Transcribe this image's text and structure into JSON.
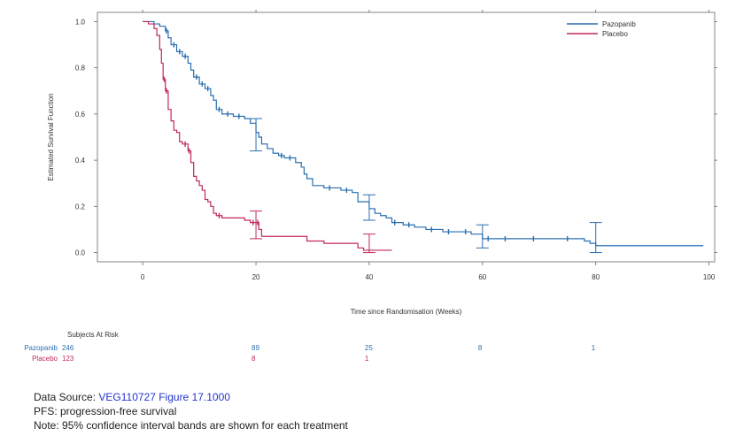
{
  "chart_data": {
    "type": "line",
    "xlabel": "Time since Randomisation (Weeks)",
    "ylabel": "Estimated Survival Function",
    "xlim": [
      -8,
      101
    ],
    "ylim": [
      -0.04,
      1.04
    ],
    "xticks": [
      0,
      20,
      40,
      60,
      80,
      100
    ],
    "yticks": [
      0.0,
      0.2,
      0.4,
      0.6,
      0.8,
      1.0
    ],
    "ytick_labels": [
      "0.0",
      "0.2",
      "0.4",
      "0.6",
      "0.8",
      "1.0"
    ],
    "legend": "top-right",
    "series": [
      {
        "name": "Pazopanib",
        "color": "#2a6fb0",
        "steps": [
          [
            0,
            1.0
          ],
          [
            2,
            0.99
          ],
          [
            3,
            0.98
          ],
          [
            4,
            0.96
          ],
          [
            4.5,
            0.93
          ],
          [
            5,
            0.9
          ],
          [
            6,
            0.87
          ],
          [
            7,
            0.85
          ],
          [
            8,
            0.82
          ],
          [
            8.5,
            0.79
          ],
          [
            9,
            0.76
          ],
          [
            10,
            0.73
          ],
          [
            11,
            0.71
          ],
          [
            12,
            0.68
          ],
          [
            12.5,
            0.66
          ],
          [
            13,
            0.62
          ],
          [
            14,
            0.6
          ],
          [
            16,
            0.59
          ],
          [
            18,
            0.58
          ],
          [
            19,
            0.56
          ],
          [
            20,
            0.52
          ],
          [
            20.5,
            0.5
          ],
          [
            21,
            0.47
          ],
          [
            22,
            0.45
          ],
          [
            23,
            0.43
          ],
          [
            24,
            0.42
          ],
          [
            25,
            0.41
          ],
          [
            27,
            0.39
          ],
          [
            28,
            0.37
          ],
          [
            28.5,
            0.34
          ],
          [
            29,
            0.32
          ],
          [
            30,
            0.29
          ],
          [
            32,
            0.28
          ],
          [
            34,
            0.28
          ],
          [
            35,
            0.27
          ],
          [
            37,
            0.26
          ],
          [
            38,
            0.22
          ],
          [
            40,
            0.19
          ],
          [
            41,
            0.17
          ],
          [
            42,
            0.16
          ],
          [
            43,
            0.15
          ],
          [
            44,
            0.13
          ],
          [
            46,
            0.12
          ],
          [
            48,
            0.11
          ],
          [
            50,
            0.1
          ],
          [
            53,
            0.09
          ],
          [
            56,
            0.09
          ],
          [
            58,
            0.08
          ],
          [
            60,
            0.06
          ],
          [
            62,
            0.06
          ],
          [
            75,
            0.06
          ],
          [
            78,
            0.05
          ],
          [
            79,
            0.04
          ],
          [
            80,
            0.03
          ],
          [
            99,
            0.03
          ]
        ],
        "censor_marks": [
          [
            4.2,
            0.96
          ],
          [
            5.5,
            0.9
          ],
          [
            6.5,
            0.87
          ],
          [
            7.5,
            0.85
          ],
          [
            9.5,
            0.76
          ],
          [
            10.5,
            0.73
          ],
          [
            11.5,
            0.71
          ],
          [
            13.5,
            0.62
          ],
          [
            15,
            0.6
          ],
          [
            17,
            0.59
          ],
          [
            24.5,
            0.42
          ],
          [
            26,
            0.41
          ],
          [
            33,
            0.28
          ],
          [
            36,
            0.27
          ],
          [
            44.5,
            0.13
          ],
          [
            47,
            0.12
          ],
          [
            51,
            0.1
          ],
          [
            54,
            0.09
          ],
          [
            57,
            0.09
          ],
          [
            61,
            0.06
          ],
          [
            64,
            0.06
          ],
          [
            69,
            0.06
          ],
          [
            75,
            0.06
          ]
        ],
        "confidence_intervals": [
          [
            20,
            0.44,
            0.58
          ],
          [
            40,
            0.14,
            0.25
          ],
          [
            60,
            0.02,
            0.12
          ],
          [
            80,
            0.0,
            0.13
          ]
        ]
      },
      {
        "name": "Placebo",
        "color": "#c02a5a",
        "steps": [
          [
            0,
            1.0
          ],
          [
            1,
            0.99
          ],
          [
            2,
            0.97
          ],
          [
            2.5,
            0.94
          ],
          [
            3,
            0.88
          ],
          [
            3.3,
            0.82
          ],
          [
            3.6,
            0.75
          ],
          [
            4,
            0.7
          ],
          [
            4.5,
            0.62
          ],
          [
            5,
            0.57
          ],
          [
            5.5,
            0.53
          ],
          [
            6,
            0.52
          ],
          [
            6.5,
            0.48
          ],
          [
            7,
            0.47
          ],
          [
            8,
            0.44
          ],
          [
            8.5,
            0.39
          ],
          [
            9,
            0.33
          ],
          [
            9.5,
            0.31
          ],
          [
            10,
            0.29
          ],
          [
            10.5,
            0.27
          ],
          [
            11,
            0.23
          ],
          [
            11.5,
            0.22
          ],
          [
            12,
            0.2
          ],
          [
            12.5,
            0.17
          ],
          [
            13,
            0.16
          ],
          [
            14,
            0.15
          ],
          [
            16,
            0.15
          ],
          [
            18,
            0.14
          ],
          [
            19,
            0.13
          ],
          [
            20,
            0.13
          ],
          [
            20.5,
            0.1
          ],
          [
            21,
            0.07
          ],
          [
            24,
            0.07
          ],
          [
            28,
            0.07
          ],
          [
            29,
            0.05
          ],
          [
            32,
            0.04
          ],
          [
            37,
            0.04
          ],
          [
            38,
            0.02
          ],
          [
            39,
            0.01
          ],
          [
            44,
            0.01
          ]
        ],
        "censor_marks": [
          [
            3.8,
            0.75
          ],
          [
            4.2,
            0.7
          ],
          [
            7.5,
            0.47
          ],
          [
            8.2,
            0.44
          ],
          [
            13.5,
            0.16
          ],
          [
            19.5,
            0.13
          ],
          [
            20.3,
            0.13
          ]
        ],
        "confidence_intervals": [
          [
            20,
            0.06,
            0.18
          ],
          [
            40,
            0.0,
            0.08
          ]
        ]
      }
    ],
    "at_risk": {
      "title": "Subjects At Risk",
      "rows": [
        {
          "label": "Pazopanib",
          "values": [
            "246",
            "89",
            "25",
            "8",
            "1"
          ],
          "x": [
            0,
            20,
            40,
            60,
            80
          ]
        },
        {
          "label": "Placebo",
          "values": [
            "123",
            "8",
            "1"
          ],
          "x": [
            0,
            20,
            40
          ]
        }
      ]
    }
  },
  "footnotes": {
    "data_source_label": "Data Source:",
    "data_source_value": "VEG110727 Figure 17.1000",
    "pfs": "PFS: progression-free survival",
    "note": "Note: 95% confidence interval bands are shown for each treatment"
  }
}
